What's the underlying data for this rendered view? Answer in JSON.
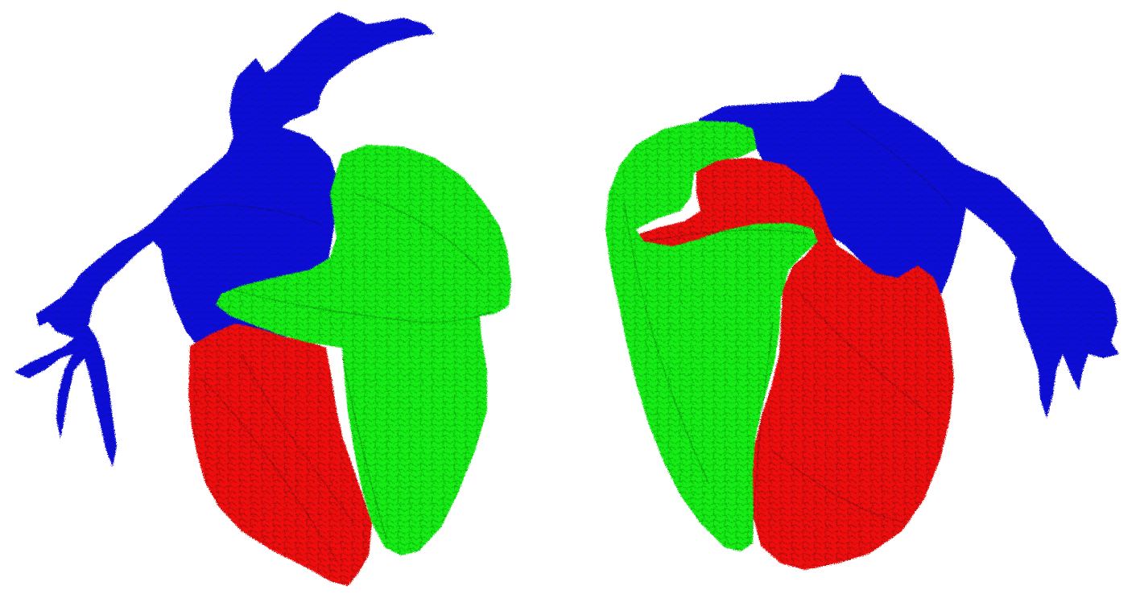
{
  "scene": {
    "colors": {
      "background": "#ffffff",
      "blue": "#1010d8",
      "red": "#f01010",
      "green": "#10e810"
    },
    "views": [
      {
        "id": "front-view",
        "regions": [
          "blue",
          "green",
          "red"
        ]
      },
      {
        "id": "back-view",
        "regions": [
          "blue",
          "green",
          "red"
        ]
      }
    ]
  }
}
